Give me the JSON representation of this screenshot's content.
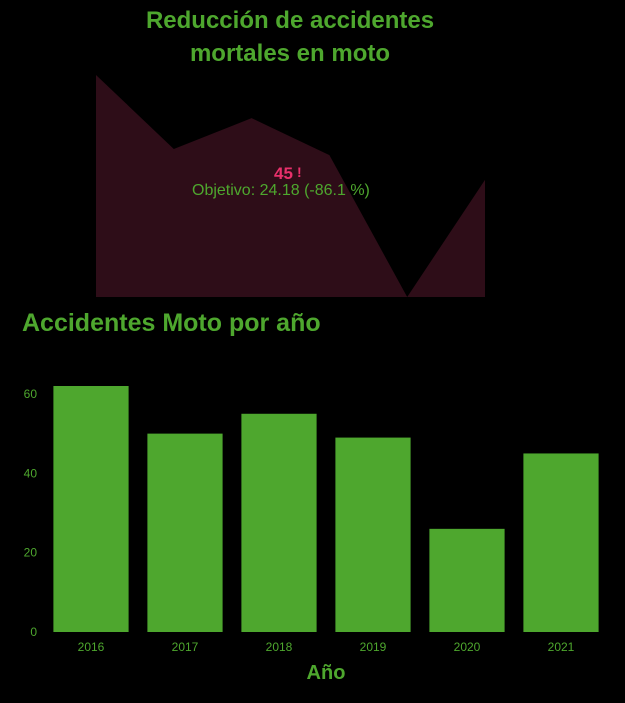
{
  "kpi": {
    "title_line1": "Reducción de accidentes",
    "title_line2": "mortales en moto",
    "value": "45",
    "alert_mark": "!",
    "goal_text": "Objetivo: 24.18 (-86.1 %)",
    "area_color": "#2e0d18",
    "value_color": "#e8306b"
  },
  "accent_color": "#4ea72e",
  "chart_data": [
    {
      "type": "area",
      "x": [
        2016,
        2017,
        2018,
        2019,
        2020,
        2021
      ],
      "values": [
        62,
        50,
        55,
        49,
        26,
        45
      ],
      "ylim": [
        26,
        62
      ],
      "color": "#2e0d18"
    },
    {
      "type": "bar",
      "title": "Accidentes Moto por año",
      "xlabel": "Año",
      "ylabel": "",
      "categories": [
        "2016",
        "2017",
        "2018",
        "2019",
        "2020",
        "2021"
      ],
      "values": [
        62,
        50,
        55,
        49,
        26,
        45
      ],
      "ylim": [
        0,
        62
      ],
      "yticks": [
        0,
        20,
        40,
        60
      ],
      "grid": false,
      "color": "#4ea72e"
    }
  ]
}
